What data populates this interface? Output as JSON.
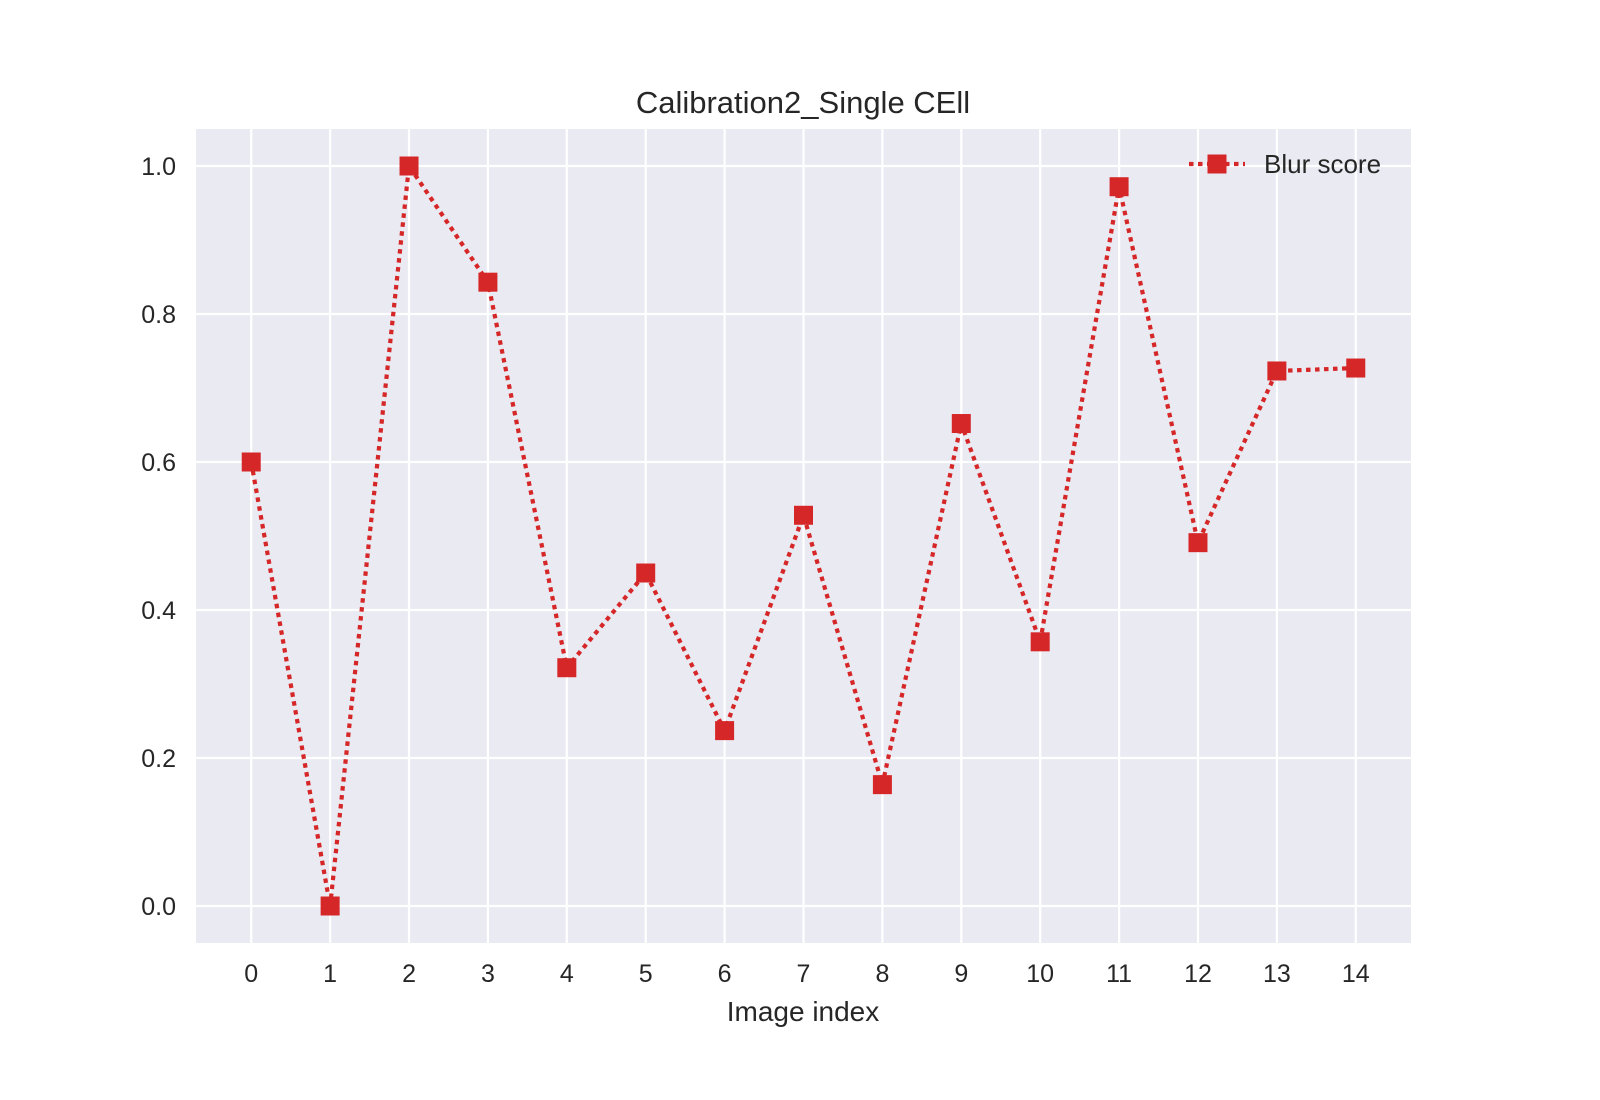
{
  "chart_data": {
    "type": "line",
    "title": "Calibration2_Single CEll",
    "xlabel": "Image index",
    "ylabel": "",
    "x": [
      0,
      1,
      2,
      3,
      4,
      5,
      6,
      7,
      8,
      9,
      10,
      11,
      12,
      13,
      14
    ],
    "series": [
      {
        "name": "Blur score",
        "values": [
          0.6,
          0.0,
          1.0,
          0.843,
          0.322,
          0.45,
          0.237,
          0.528,
          0.164,
          0.652,
          0.357,
          0.972,
          0.491,
          0.723,
          0.727
        ],
        "color": "#d62728",
        "line_style": "dotted",
        "marker": "square"
      }
    ],
    "x_ticks": [
      "0",
      "1",
      "2",
      "3",
      "4",
      "5",
      "6",
      "7",
      "8",
      "9",
      "10",
      "11",
      "12",
      "13",
      "14"
    ],
    "y_ticks": [
      "0.0",
      "0.2",
      "0.4",
      "0.6",
      "0.8",
      "1.0"
    ],
    "y_tick_values": [
      0.0,
      0.2,
      0.4,
      0.6,
      0.8,
      1.0
    ],
    "xlim": [
      -0.7,
      14.7
    ],
    "ylim": [
      -0.05,
      1.05
    ],
    "grid": true,
    "legend_position": "top-right",
    "plot_background": "#eaeaf2",
    "grid_color": "#ffffff"
  }
}
